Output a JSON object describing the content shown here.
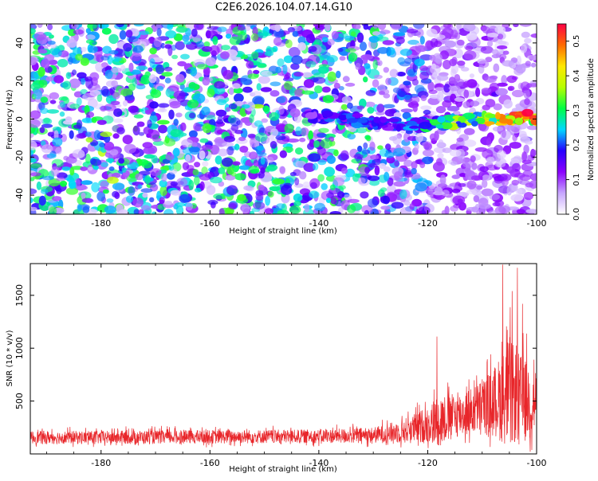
{
  "page_title": "C2E6.2026.104.07.14.G10",
  "chart_data": [
    {
      "type": "heatmap",
      "title": "C2E6.2026.104.07.14.G10",
      "xlabel": "Height of straight line (km)",
      "ylabel": "Frequency (Hz)",
      "xlim": [
        -193,
        -100
      ],
      "ylim": [
        -50,
        50
      ],
      "xticks": [
        -180,
        -160,
        -140,
        -120,
        -100
      ],
      "yticks": [
        -40,
        -20,
        0,
        20,
        40
      ],
      "colorbar": {
        "label": "Normalized spectral amplitude",
        "range": [
          0,
          0.55
        ],
        "ticks": [
          "0.0",
          "0.1",
          "0.2",
          "0.3",
          "0.4",
          "0.5"
        ],
        "colors": [
          "#ffffff",
          "#c7a6ff",
          "#8a00ff",
          "#2600ff",
          "#00d8ff",
          "#00ff44",
          "#b6ff00",
          "#ffe800",
          "#ff6a00",
          "#ff0044"
        ]
      },
      "signal_track": {
        "description_free": true,
        "x": [
          -142,
          -138,
          -134,
          -130,
          -126,
          -122,
          -118,
          -114,
          -110,
          -106,
          -102,
          -100
        ],
        "y": [
          2,
          1,
          0,
          -2,
          -3,
          -3,
          -2,
          -1,
          0,
          0,
          1,
          0
        ],
        "amplitude": [
          0.15,
          0.2,
          0.22,
          0.2,
          0.18,
          0.25,
          0.3,
          0.35,
          0.38,
          0.45,
          0.55,
          0.5
        ]
      }
    },
    {
      "type": "line",
      "xlabel": "Height of straight line (km)",
      "ylabel": "SNR (10 * v/v)",
      "xlim": [
        -193,
        -100
      ],
      "ylim": [
        0,
        1800
      ],
      "xticks": [
        -180,
        -160,
        -140,
        -120,
        -100
      ],
      "yticks": [
        500,
        1000,
        1500
      ],
      "line_color": "#e8262a",
      "envelope": {
        "x": [
          -193,
          -180,
          -160,
          -140,
          -130,
          -125,
          -122,
          -120,
          -118,
          -116,
          -112,
          -110,
          -108,
          -106,
          -105,
          -104,
          -103,
          -102,
          -101,
          -100
        ],
        "base": [
          150,
          150,
          155,
          160,
          170,
          200,
          230,
          260,
          300,
          330,
          380,
          420,
          450,
          500,
          520,
          500,
          480,
          470,
          460,
          450
        ],
        "spread": [
          120,
          125,
          130,
          130,
          150,
          220,
          300,
          350,
          500,
          420,
          450,
          520,
          650,
          900,
          1100,
          900,
          850,
          800,
          750,
          700
        ]
      },
      "annotated_peaks": [
        {
          "x": -118.3,
          "y": 1110
        },
        {
          "x": -106.2,
          "y": 1790
        },
        {
          "x": -104.5,
          "y": 1540
        },
        {
          "x": -103.5,
          "y": 1760
        },
        {
          "x": -102.6,
          "y": 1420
        }
      ]
    }
  ]
}
